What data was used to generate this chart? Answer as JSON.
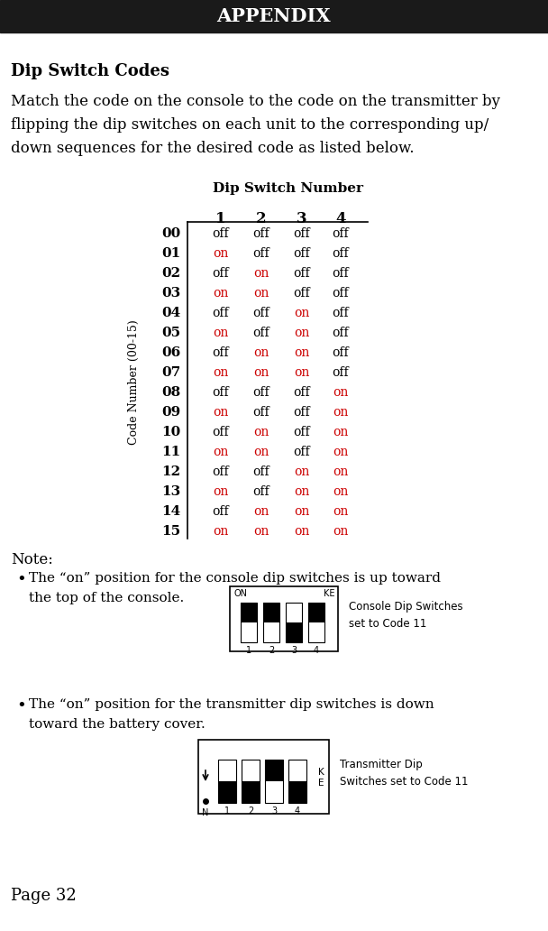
{
  "title": "APPENDIX",
  "title_bg": "#1a1a1a",
  "title_color": "#ffffff",
  "section_title": "Dip Switch Codes",
  "intro_lines": [
    "Match the code on the console to the code on the transmitter by",
    "flipping the dip switches on each unit to the corresponding up/",
    "down sequences for the desired code as listed below."
  ],
  "table_header": "Dip Switch Number",
  "col_headers": [
    "1",
    "2",
    "3",
    "4"
  ],
  "row_labels": [
    "00",
    "01",
    "02",
    "03",
    "04",
    "05",
    "06",
    "07",
    "08",
    "09",
    "10",
    "11",
    "12",
    "13",
    "14",
    "15"
  ],
  "table_data": [
    [
      "off",
      "off",
      "off",
      "off"
    ],
    [
      "on",
      "off",
      "off",
      "off"
    ],
    [
      "off",
      "on",
      "off",
      "off"
    ],
    [
      "on",
      "on",
      "off",
      "off"
    ],
    [
      "off",
      "off",
      "on",
      "off"
    ],
    [
      "on",
      "off",
      "on",
      "off"
    ],
    [
      "off",
      "on",
      "on",
      "off"
    ],
    [
      "on",
      "on",
      "on",
      "off"
    ],
    [
      "off",
      "off",
      "off",
      "on"
    ],
    [
      "on",
      "off",
      "off",
      "on"
    ],
    [
      "off",
      "on",
      "off",
      "on"
    ],
    [
      "on",
      "on",
      "off",
      "on"
    ],
    [
      "off",
      "off",
      "on",
      "on"
    ],
    [
      "on",
      "off",
      "on",
      "on"
    ],
    [
      "off",
      "on",
      "on",
      "on"
    ],
    [
      "on",
      "on",
      "on",
      "on"
    ]
  ],
  "on_color": "#cc0000",
  "off_color": "#000000",
  "y_axis_label": "Code Number (00-15)",
  "note_title": "Note:",
  "note1_lines": [
    "The “on” position for the console dip switches is up toward",
    "the top of the console."
  ],
  "note2_lines": [
    "The “on” position for the transmitter dip switches is down",
    "toward the battery cover."
  ],
  "console_label": "Console Dip Switches\nset to Code 11",
  "transmitter_label": "Transmitter Dip\nSwitches set to Code 11",
  "page_label": "Page 32",
  "background_color": "#ffffff"
}
